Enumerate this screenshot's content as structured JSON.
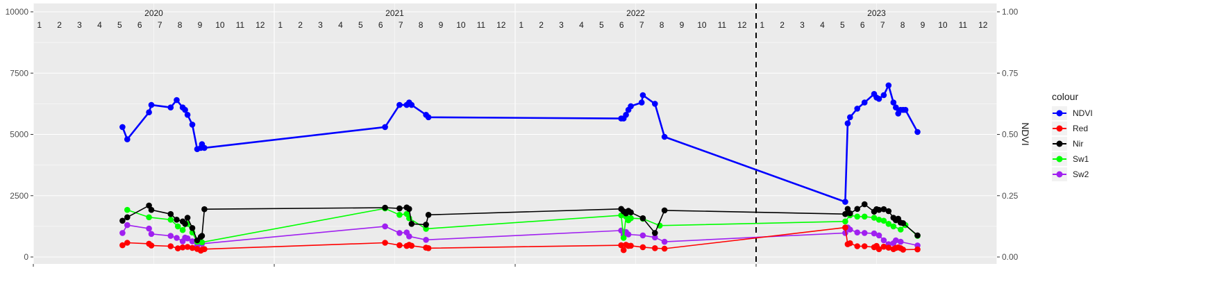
{
  "chart_data": {
    "type": "line",
    "title": "",
    "xlabel": "",
    "ylabel_left": "",
    "ylabel_right": "NDVI",
    "ylim_left": [
      0,
      10000
    ],
    "ylim_right": [
      0,
      1
    ],
    "y_ticks_left": [
      "0",
      "2500",
      "5000",
      "7500",
      "10000"
    ],
    "y_ticks_right": [
      "0.00",
      "0.25",
      "0.50",
      "0.75",
      "1.00"
    ],
    "years": [
      "2020",
      "2021",
      "2022",
      "2023"
    ],
    "month_labels": [
      "1",
      "2",
      "3",
      "4",
      "5",
      "6",
      "7",
      "8",
      "9",
      "10",
      "11",
      "12"
    ],
    "xlim": [
      2020.0,
      2024.0
    ],
    "vline_x": 2023.0,
    "grid": true,
    "legend_title": "colour",
    "legend_position": "right",
    "series": [
      {
        "name": "NDVI",
        "axis": "right",
        "color": "#0000ff",
        "x": [
          2020.37,
          2020.39,
          2020.48,
          2020.49,
          2020.57,
          2020.595,
          2020.62,
          2020.63,
          2020.64,
          2020.66,
          2020.68,
          2020.695,
          2020.7,
          2020.71,
          2021.46,
          2021.52,
          2021.55,
          2021.56,
          2021.57,
          2021.63,
          2021.64,
          2022.44,
          2022.45,
          2022.46,
          2022.47,
          2022.48,
          2022.525,
          2022.53,
          2022.58,
          2022.62,
          2023.37,
          2023.38,
          2023.39,
          2023.42,
          2023.45,
          2023.49,
          2023.5,
          2023.51,
          2023.53,
          2023.55,
          2023.57,
          2023.58,
          2023.59,
          2023.6,
          2023.61,
          2023.62,
          2023.67
        ],
        "y": [
          0.53,
          0.48,
          0.59,
          0.62,
          0.61,
          0.64,
          0.61,
          0.6,
          0.58,
          0.54,
          0.44,
          0.445,
          0.46,
          0.445,
          0.53,
          0.62,
          0.62,
          0.63,
          0.62,
          0.58,
          0.57,
          0.565,
          0.565,
          0.58,
          0.6,
          0.615,
          0.63,
          0.66,
          0.625,
          0.49,
          0.225,
          0.545,
          0.57,
          0.605,
          0.63,
          0.665,
          0.65,
          0.645,
          0.66,
          0.7,
          0.63,
          0.61,
          0.585,
          0.6,
          0.6,
          0.6,
          0.51
        ]
      },
      {
        "name": "Red",
        "axis": "left",
        "color": "#ff0000",
        "x": [
          2020.37,
          2020.39,
          2020.48,
          2020.49,
          2020.57,
          2020.6,
          2020.62,
          2020.64,
          2020.66,
          2020.68,
          2020.695,
          2020.7,
          2020.71,
          2021.46,
          2021.52,
          2021.55,
          2021.56,
          2021.57,
          2021.63,
          2021.64,
          2022.44,
          2022.45,
          2022.46,
          2022.47,
          2022.48,
          2022.53,
          2022.58,
          2022.62,
          2023.37,
          2023.38,
          2023.39,
          2023.42,
          2023.45,
          2023.49,
          2023.5,
          2023.51,
          2023.53,
          2023.55,
          2023.57,
          2023.58,
          2023.59,
          2023.6,
          2023.61,
          2023.67
        ],
        "y": [
          480,
          580,
          540,
          470,
          440,
          350,
          390,
          410,
          370,
          330,
          260,
          300,
          320,
          580,
          480,
          450,
          500,
          460,
          380,
          360,
          480,
          280,
          500,
          450,
          460,
          400,
          360,
          340,
          1200,
          520,
          560,
          440,
          440,
          400,
          450,
          320,
          420,
          380,
          320,
          370,
          390,
          360,
          300,
          310
        ]
      },
      {
        "name": "Nir",
        "axis": "left",
        "color": "#000000",
        "x": [
          2020.37,
          2020.39,
          2020.48,
          2020.49,
          2020.57,
          2020.595,
          2020.62,
          2020.63,
          2020.64,
          2020.66,
          2020.68,
          2020.695,
          2020.7,
          2020.71,
          2021.46,
          2021.52,
          2021.55,
          2021.56,
          2021.57,
          2021.63,
          2021.64,
          2022.44,
          2022.45,
          2022.46,
          2022.47,
          2022.48,
          2022.53,
          2022.58,
          2022.62,
          2023.37,
          2023.38,
          2023.39,
          2023.42,
          2023.45,
          2023.49,
          2023.5,
          2023.51,
          2023.53,
          2023.55,
          2023.57,
          2023.58,
          2023.59,
          2023.6,
          2023.61,
          2023.67
        ],
        "y": [
          1480,
          1620,
          2100,
          1920,
          1750,
          1520,
          1450,
          1350,
          1600,
          1180,
          680,
          820,
          860,
          1950,
          2010,
          1980,
          2020,
          1960,
          1350,
          1320,
          1720,
          1960,
          1860,
          1780,
          1880,
          1820,
          1580,
          980,
          1900,
          1750,
          1960,
          1780,
          1960,
          2150,
          1850,
          1950,
          1920,
          1950,
          1870,
          1600,
          1500,
          1560,
          1400,
          1380,
          880
        ]
      },
      {
        "name": "Sw1",
        "axis": "left",
        "color": "#00ff00",
        "x": [
          2020.39,
          2020.48,
          2020.57,
          2020.6,
          2020.62,
          2020.64,
          2020.66,
          2020.68,
          2020.7,
          2021.46,
          2021.52,
          2021.55,
          2021.56,
          2021.63,
          2022.44,
          2022.45,
          2022.46,
          2022.47,
          2022.48,
          2022.53,
          2022.6,
          2023.37,
          2023.39,
          2023.42,
          2023.45,
          2023.49,
          2023.51,
          2023.53,
          2023.55,
          2023.57,
          2023.6,
          2023.62,
          2023.67
        ],
        "y": [
          1920,
          1620,
          1520,
          1250,
          1100,
          1350,
          1000,
          620,
          600,
          1980,
          1720,
          1760,
          1580,
          1150,
          1700,
          780,
          1650,
          1500,
          1580,
          1560,
          1280,
          1450,
          1700,
          1650,
          1650,
          1600,
          1520,
          1480,
          1350,
          1250,
          1120,
          1300,
          860
        ]
      },
      {
        "name": "Sw2",
        "axis": "left",
        "color": "#a020f0",
        "x": [
          2020.37,
          2020.39,
          2020.48,
          2020.49,
          2020.57,
          2020.595,
          2020.62,
          2020.63,
          2020.64,
          2020.66,
          2020.68,
          2020.7,
          2021.46,
          2021.52,
          2021.55,
          2021.56,
          2021.63,
          2022.44,
          2022.45,
          2022.46,
          2022.47,
          2022.53,
          2022.58,
          2022.62,
          2023.37,
          2023.38,
          2023.39,
          2023.42,
          2023.45,
          2023.49,
          2023.51,
          2023.53,
          2023.55,
          2023.57,
          2023.58,
          2023.6,
          2023.67
        ],
        "y": [
          980,
          1300,
          1160,
          940,
          860,
          780,
          640,
          790,
          760,
          640,
          450,
          540,
          1250,
          980,
          1000,
          840,
          700,
          1080,
          900,
          1020,
          920,
          880,
          800,
          620,
          980,
          1200,
          1120,
          1000,
          980,
          960,
          880,
          680,
          520,
          560,
          680,
          620,
          470
        ]
      }
    ]
  }
}
